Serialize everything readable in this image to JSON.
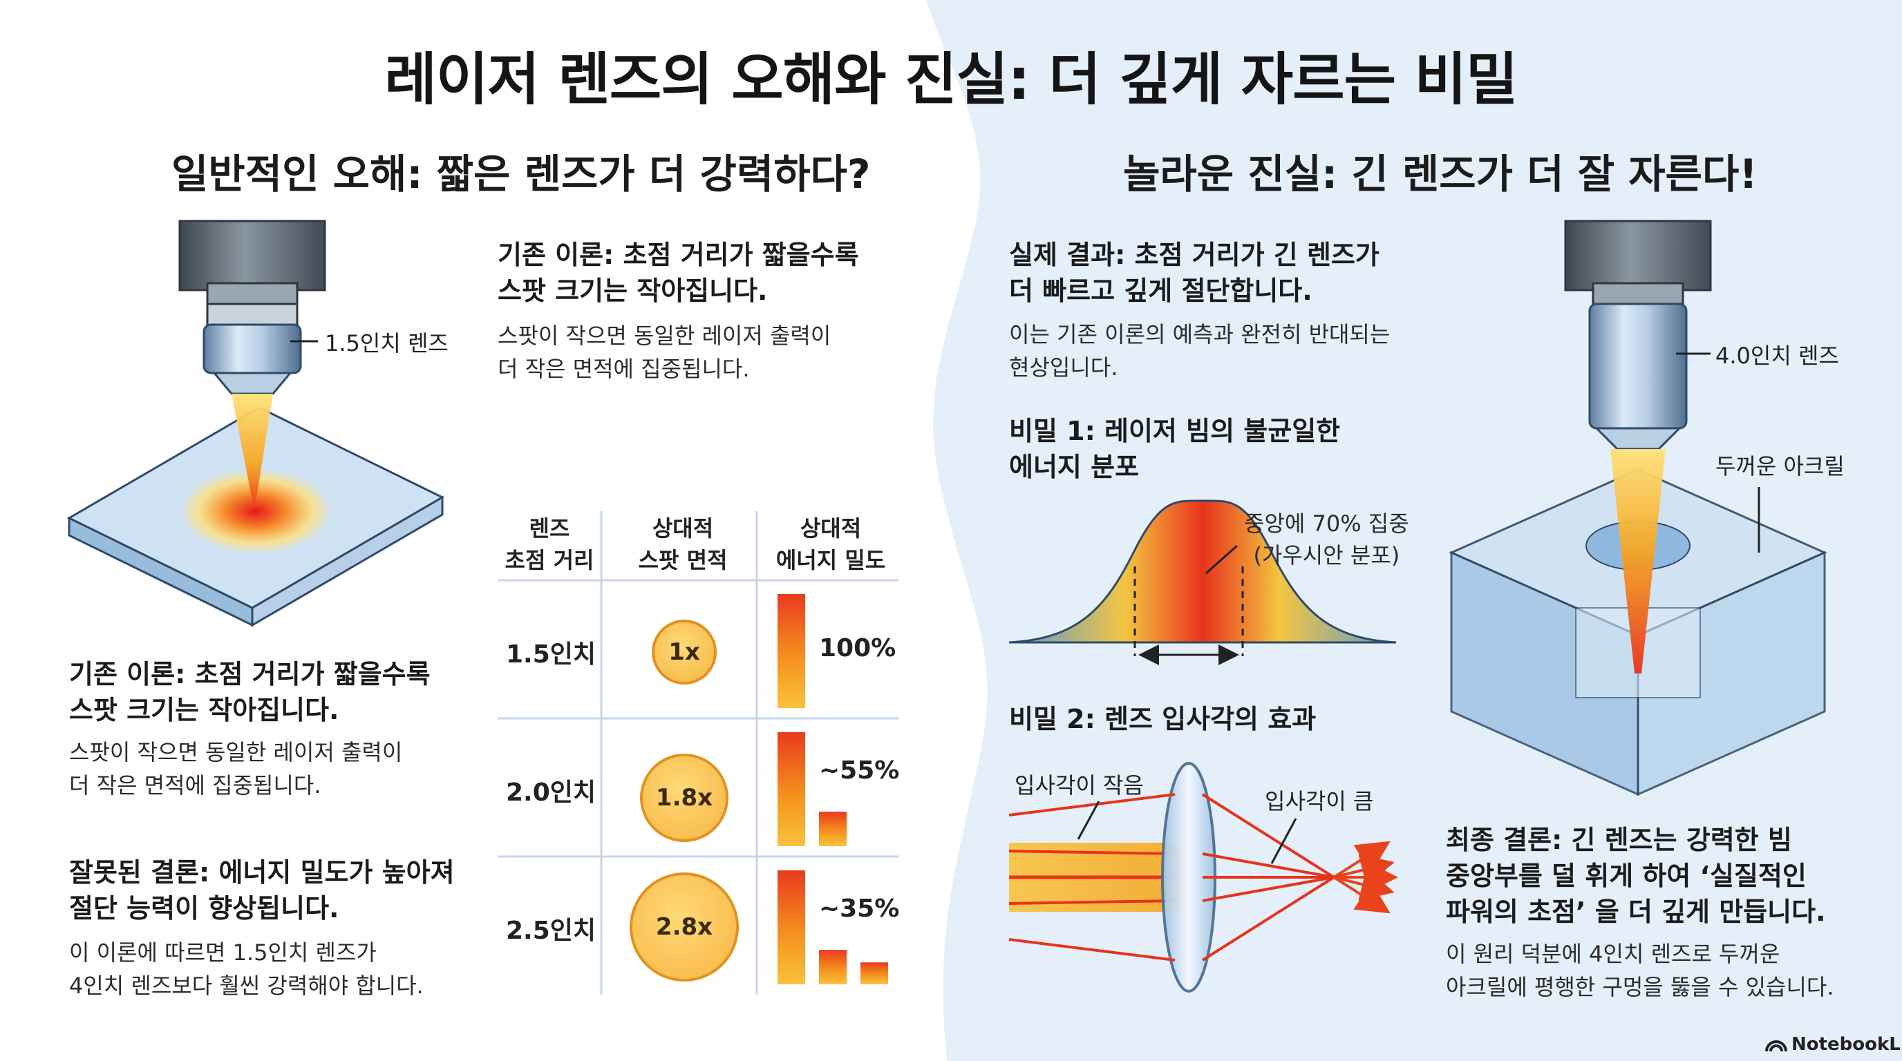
{
  "title": "레이저 렌즈의 오해와 진실: 더 깊게 자르는 비밀",
  "left": {
    "heading": "일반적인 오해: 짧은 렌즈가 더 강력하다?",
    "lens_label": "1.5인치 렌즈",
    "theory_top": {
      "heading": "기존 이론: 초점 거리가 짧을수록\n스팟 크기는 작아집니다.",
      "body": "스팟이 작으면 동일한 레이저 출력이\n더 작은 면적에 집중됩니다."
    },
    "theory_bottom": {
      "heading": "기존 이론: 초점 거리가 짧을수록\n스팟 크기는 작아집니다.",
      "body": "스팟이 작으면 동일한 레이저 출력이\n더 작은 면적에 집중됩니다."
    },
    "wrong_conclusion": {
      "heading": "잘못된 결론: 에너지 밀도가 높아져\n절단 능력이 향상됩니다.",
      "body": "이 이론에 따르면 1.5인치 렌즈가\n4인치 렌즈보다 훨씬 강력해야 합니다."
    }
  },
  "table": {
    "headers": [
      "렌즈\n초점 거리",
      "상대적\n스팟 면적",
      "상대적\n에너지 밀도"
    ],
    "rows": [
      {
        "lens": "1.5인치",
        "spot": "1x",
        "density": "100%"
      },
      {
        "lens": "2.0인치",
        "spot": "1.8x",
        "density": "~55%"
      },
      {
        "lens": "2.5인치",
        "spot": "2.8x",
        "density": "~35%"
      }
    ]
  },
  "chart_data": {
    "type": "bar",
    "title": "상대적 에너지 밀도",
    "categories": [
      "1.5인치",
      "2.0인치",
      "2.5인치"
    ],
    "values": [
      100,
      55,
      35
    ],
    "unit": "%",
    "ylim": [
      0,
      100
    ]
  },
  "right": {
    "heading": "놀라운 진실: 긴 렌즈가 더 잘 자른다!",
    "result": {
      "heading": "실제 결과: 초점 거리가 긴 렌즈가\n더 빠르고 깊게 절단합니다.",
      "body": "이는 기존 이론의 예측과 완전히 반대되는\n현상입니다."
    },
    "secret1": {
      "heading": "비밀 1: 레이저 빔의 불균일한\n에너지 분포",
      "annotation": "중앙에 70% 집중\n(가우시안 분포)"
    },
    "secret2": {
      "heading": "비밀 2: 렌즈 입사각의 효과",
      "small_angle": "입사각이 작음",
      "large_angle": "입사각이 큼"
    },
    "lens_label": "4.0인치 렌즈",
    "acrylic_label": "두꺼운 아크릴",
    "final": {
      "heading": "최종 결론: 긴 렌즈는 강력한 빔\n중앙부를 덜 휘게 하여 ‘실질적인\n파워의 초점’ 을 더 깊게 만듭니다.",
      "body": "이 원리 덕분에 4인치 렌즈로 두꺼운\n아크릴에 평행한 구멍을 뚫을 수 있습니다."
    }
  },
  "footer": {
    "logo": "NotebookLM"
  },
  "colors": {
    "right_bg": "#e4eff9",
    "laser_orange": "#f5a623",
    "laser_red": "#e8331c",
    "bar_yellow": "#f9c23c"
  }
}
